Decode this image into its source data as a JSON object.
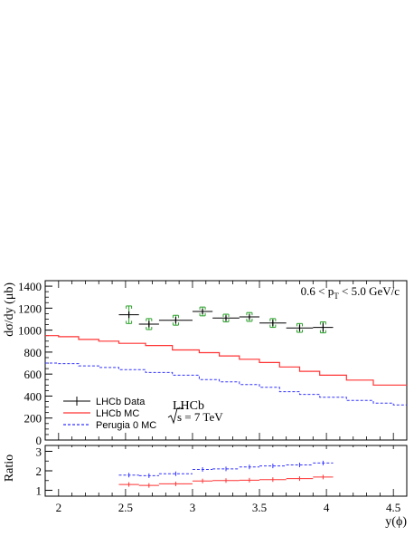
{
  "chart_data": [
    {
      "type": "line",
      "panel": "main",
      "ylabel": "dσ/dy (μb)",
      "ylim": [
        0,
        1450
      ],
      "xlim": [
        1.9,
        4.6
      ],
      "yticks": [
        0,
        200,
        400,
        600,
        800,
        1000,
        1200,
        1400
      ],
      "annotation_range": "0.6 < p_T < 5.0 GeV/c",
      "annotation_range_parts": {
        "pre": "0.6 < p",
        "sub": "T",
        "post": " < 5.0 GeV/c"
      },
      "experiment": "LHCb",
      "energy": "s = 7 TeV",
      "legend_position": "bottom-left",
      "legend": {
        "data": "LHCb Data",
        "mc": "LHCb MC",
        "perugia": "Perugia 0 MC"
      },
      "colors": {
        "data": "#000000",
        "syst": "#2ca02c",
        "mc": "#ff3333",
        "perugia": "#3333ff"
      },
      "data": [
        {
          "x": 2.525,
          "xerr": 0.075,
          "y": 1140,
          "ystat": 30,
          "ysyst": 80
        },
        {
          "x": 2.675,
          "xerr": 0.075,
          "y": 1055,
          "ystat": 30,
          "ysyst": 50
        },
        {
          "x": 2.875,
          "xerr": 0.125,
          "y": 1090,
          "ystat": 30,
          "ysyst": 45
        },
        {
          "x": 3.075,
          "xerr": 0.075,
          "y": 1170,
          "ystat": 25,
          "ysyst": 40
        },
        {
          "x": 3.25,
          "xerr": 0.1,
          "y": 1110,
          "ystat": 25,
          "ysyst": 35
        },
        {
          "x": 3.425,
          "xerr": 0.075,
          "y": 1120,
          "ystat": 25,
          "ysyst": 40
        },
        {
          "x": 3.6,
          "xerr": 0.1,
          "y": 1065,
          "ystat": 30,
          "ysyst": 40
        },
        {
          "x": 3.8,
          "xerr": 0.1,
          "y": 1020,
          "ystat": 30,
          "ysyst": 40
        },
        {
          "x": 3.975,
          "xerr": 0.075,
          "y": 1025,
          "ystat": 40,
          "ysyst": 50
        }
      ],
      "mc": {
        "edges": [
          1.9,
          2.0,
          2.15,
          2.3,
          2.45,
          2.65,
          2.85,
          3.05,
          3.2,
          3.35,
          3.5,
          3.65,
          3.8,
          3.95,
          4.15,
          4.35,
          4.5,
          4.6
        ],
        "values": [
          950,
          940,
          915,
          900,
          880,
          860,
          820,
          795,
          765,
          735,
          705,
          665,
          625,
          590,
          545,
          500,
          500
        ]
      },
      "perugia": {
        "edges": [
          1.9,
          2.0,
          2.15,
          2.3,
          2.45,
          2.65,
          2.85,
          3.05,
          3.2,
          3.35,
          3.5,
          3.65,
          3.8,
          3.95,
          4.15,
          4.35,
          4.5,
          4.6
        ],
        "values": [
          700,
          695,
          675,
          660,
          640,
          615,
          590,
          550,
          530,
          505,
          480,
          440,
          415,
          390,
          360,
          335,
          320
        ]
      }
    },
    {
      "type": "scatter",
      "panel": "ratio",
      "ylabel": "Ratio",
      "xlabel": "y(ϕ)",
      "ylim": [
        0.7,
        3.3
      ],
      "xlim": [
        1.9,
        4.6
      ],
      "yticks": [
        1,
        2,
        3
      ],
      "xticks": [
        2,
        2.5,
        3,
        3.5,
        4,
        4.5
      ],
      "series": [
        {
          "key": "mc",
          "points": [
            {
              "x": 2.525,
              "xerr": 0.075,
              "y": 1.3
            },
            {
              "x": 2.675,
              "xerr": 0.075,
              "y": 1.25
            },
            {
              "x": 2.875,
              "xerr": 0.125,
              "y": 1.33
            },
            {
              "x": 3.075,
              "xerr": 0.075,
              "y": 1.48
            },
            {
              "x": 3.25,
              "xerr": 0.1,
              "y": 1.5
            },
            {
              "x": 3.425,
              "xerr": 0.075,
              "y": 1.52
            },
            {
              "x": 3.6,
              "xerr": 0.1,
              "y": 1.55
            },
            {
              "x": 3.8,
              "xerr": 0.1,
              "y": 1.6
            },
            {
              "x": 3.975,
              "xerr": 0.075,
              "y": 1.68
            }
          ]
        },
        {
          "key": "perugia",
          "points": [
            {
              "x": 2.525,
              "xerr": 0.075,
              "y": 1.78
            },
            {
              "x": 2.675,
              "xerr": 0.075,
              "y": 1.75
            },
            {
              "x": 2.875,
              "xerr": 0.125,
              "y": 1.85
            },
            {
              "x": 3.075,
              "xerr": 0.075,
              "y": 2.07
            },
            {
              "x": 3.25,
              "xerr": 0.1,
              "y": 2.1
            },
            {
              "x": 3.425,
              "xerr": 0.075,
              "y": 2.2
            },
            {
              "x": 3.6,
              "xerr": 0.1,
              "y": 2.25
            },
            {
              "x": 3.8,
              "xerr": 0.1,
              "y": 2.3
            },
            {
              "x": 3.975,
              "xerr": 0.075,
              "y": 2.4
            }
          ]
        }
      ]
    }
  ]
}
